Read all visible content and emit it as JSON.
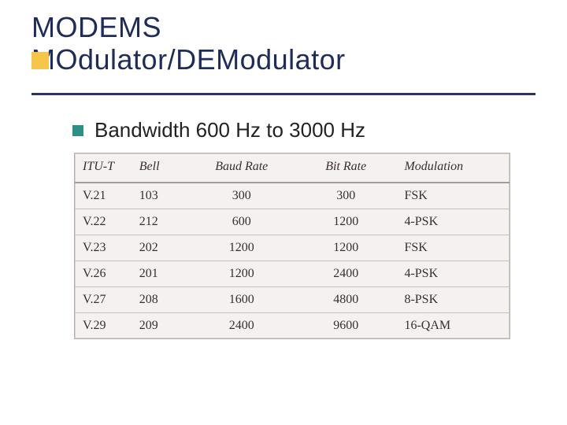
{
  "title": {
    "line1": "MODEMS",
    "line2": "MOdulator/DEModulator",
    "color": "#1f2b58",
    "fontsize": 36,
    "underline_color": "#2b2f6a"
  },
  "decor": {
    "large_square_color": "#f6c64a",
    "bullet_square_color": "#2e8f86"
  },
  "subtitle": "Bandwidth 600 Hz to 3000 Hz",
  "table": {
    "type": "table",
    "background_color": "#f4f1f0",
    "border_color": "#b8b0ad",
    "row_border_color": "#c9bfba",
    "header_font": {
      "family": "Times New Roman",
      "style": "italic",
      "size": 16
    },
    "body_font": {
      "family": "Times New Roman",
      "style": "normal",
      "size": 16
    },
    "text_color": "#3a2f2c",
    "columns": [
      "ITU-T",
      "Bell",
      "Baud Rate",
      "Bit Rate",
      "Modulation"
    ],
    "column_align": [
      "left",
      "left",
      "center",
      "center",
      "left"
    ],
    "column_widths_pct": [
      13,
      13,
      24,
      24,
      26
    ],
    "rows": [
      [
        "V.21",
        "103",
        "300",
        "300",
        "FSK"
      ],
      [
        "V.22",
        "212",
        "600",
        "1200",
        "4-PSK"
      ],
      [
        "V.23",
        "202",
        "1200",
        "1200",
        "FSK"
      ],
      [
        "V.26",
        "201",
        "1200",
        "2400",
        "4-PSK"
      ],
      [
        "V.27",
        "208",
        "1600",
        "4800",
        "8-PSK"
      ],
      [
        "V.29",
        "209",
        "2400",
        "9600",
        "16-QAM"
      ]
    ]
  }
}
